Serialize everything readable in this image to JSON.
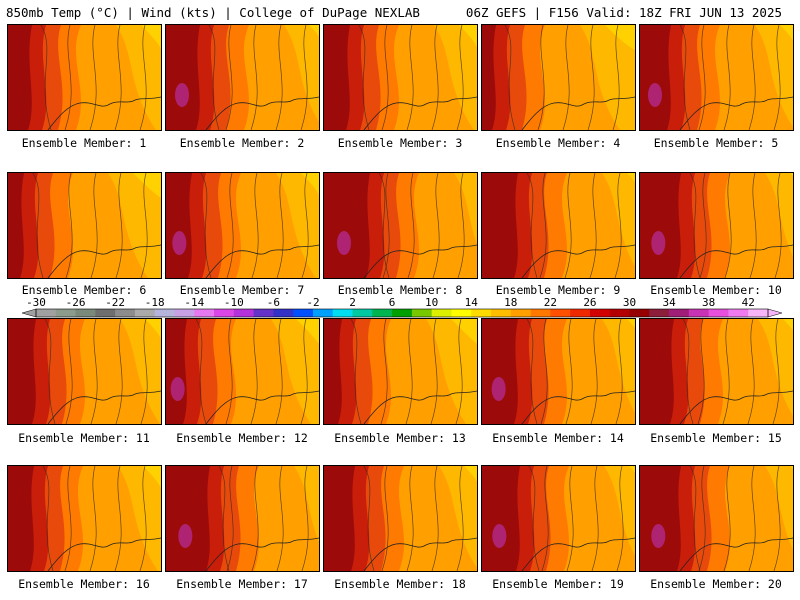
{
  "header": {
    "left": "850mb Temp (°C) | Wind (kts) | College of DuPage NEXLAB",
    "right": "06Z GEFS | F156 Valid: 18Z FRI JUN 13 2025"
  },
  "members": [
    {
      "label": "Ensemble Member: 1"
    },
    {
      "label": "Ensemble Member: 2"
    },
    {
      "label": "Ensemble Member: 3"
    },
    {
      "label": "Ensemble Member: 4"
    },
    {
      "label": "Ensemble Member: 5"
    },
    {
      "label": "Ensemble Member: 6"
    },
    {
      "label": "Ensemble Member: 7"
    },
    {
      "label": "Ensemble Member: 8"
    },
    {
      "label": "Ensemble Member: 9"
    },
    {
      "label": "Ensemble Member: 10"
    },
    {
      "label": "Ensemble Member: 11"
    },
    {
      "label": "Ensemble Member: 12"
    },
    {
      "label": "Ensemble Member: 13"
    },
    {
      "label": "Ensemble Member: 14"
    },
    {
      "label": "Ensemble Member: 15"
    },
    {
      "label": "Ensemble Member: 16"
    },
    {
      "label": "Ensemble Member: 17"
    },
    {
      "label": "Ensemble Member: 18"
    },
    {
      "label": "Ensemble Member: 19"
    },
    {
      "label": "Ensemble Member: 20"
    }
  ],
  "colorbar": {
    "tick_labels": [
      "-30",
      "-26",
      "-22",
      "-18",
      "-14",
      "-10",
      "-6",
      "-2",
      "2",
      "6",
      "10",
      "14",
      "18",
      "22",
      "26",
      "30",
      "34",
      "38",
      "42"
    ],
    "colors": [
      "#a0a0a0",
      "#8c9c8c",
      "#7a8a7a",
      "#6e6e6e",
      "#8c8c8c",
      "#aaaaaa",
      "#b4b4dc",
      "#c8a0e6",
      "#e678f0",
      "#dc46e6",
      "#b432dc",
      "#6432c8",
      "#3232c8",
      "#0050ff",
      "#00a0ff",
      "#00dcf0",
      "#00c8a0",
      "#00b450",
      "#00a000",
      "#78c800",
      "#dcf000",
      "#ffff00",
      "#ffdc00",
      "#ffbe00",
      "#ffa000",
      "#ff7800",
      "#ff5000",
      "#f02800",
      "#d20000",
      "#b40000",
      "#960000",
      "#8c1e3c",
      "#a01e78",
      "#c832b4",
      "#e650dc",
      "#f07af0",
      "#f8b4f8"
    ]
  },
  "fill_colors": {
    "dark_red": "#9c0a0a",
    "red": "#c81e0a",
    "orange_red": "#e84a0c",
    "orange": "#ff7a00",
    "light_orange": "#ffa000",
    "gold": "#ffbe00",
    "yellow": "#ffdc00",
    "magenta": "#b42a8c"
  }
}
